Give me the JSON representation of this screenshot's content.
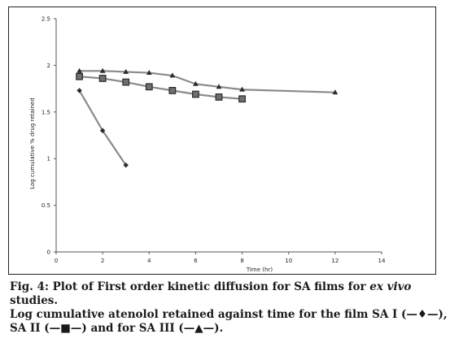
{
  "chart_data": {
    "type": "line",
    "xlabel": "Time (hr)",
    "ylabel": "Log cumulative % drug retained",
    "xlim": [
      0,
      14
    ],
    "ylim": [
      0,
      2.5
    ],
    "xticks": [
      "0",
      "2",
      "4",
      "6",
      "8",
      "10",
      "12",
      "14"
    ],
    "yticks": [
      "0",
      "0.5",
      "1",
      "1.5",
      "2",
      "2.5"
    ],
    "grid": false,
    "legend": "none",
    "series": [
      {
        "marker": "diamond",
        "color": "#8a8a8a",
        "x": [
          1,
          2,
          3
        ],
        "y": [
          1.73,
          1.3,
          0.93
        ]
      },
      {
        "marker": "square",
        "color": "#8a8a8a",
        "x": [
          1,
          2,
          3,
          4,
          5,
          6,
          7,
          8
        ],
        "y": [
          1.88,
          1.86,
          1.82,
          1.77,
          1.73,
          1.69,
          1.66,
          1.64
        ]
      },
      {
        "marker": "triangle",
        "color": "#8a8a8a",
        "x": [
          1,
          2,
          3,
          4,
          5,
          6,
          7,
          8,
          12
        ],
        "y": [
          1.94,
          1.94,
          1.93,
          1.92,
          1.89,
          1.8,
          1.77,
          1.74,
          1.71
        ]
      }
    ]
  },
  "caption": {
    "fig_label": "Fig. 4:",
    "title_prefix": " Plot of First order kinetic diffusion for SA films for ",
    "title_italic": "ex vivo",
    "title_line2": "studies.",
    "desc_line1": "Log cumulative atenolol retained against time for the film SA I (—♦—),",
    "desc_line2": "SA II (—■—) and for SA III (—▲—)."
  }
}
